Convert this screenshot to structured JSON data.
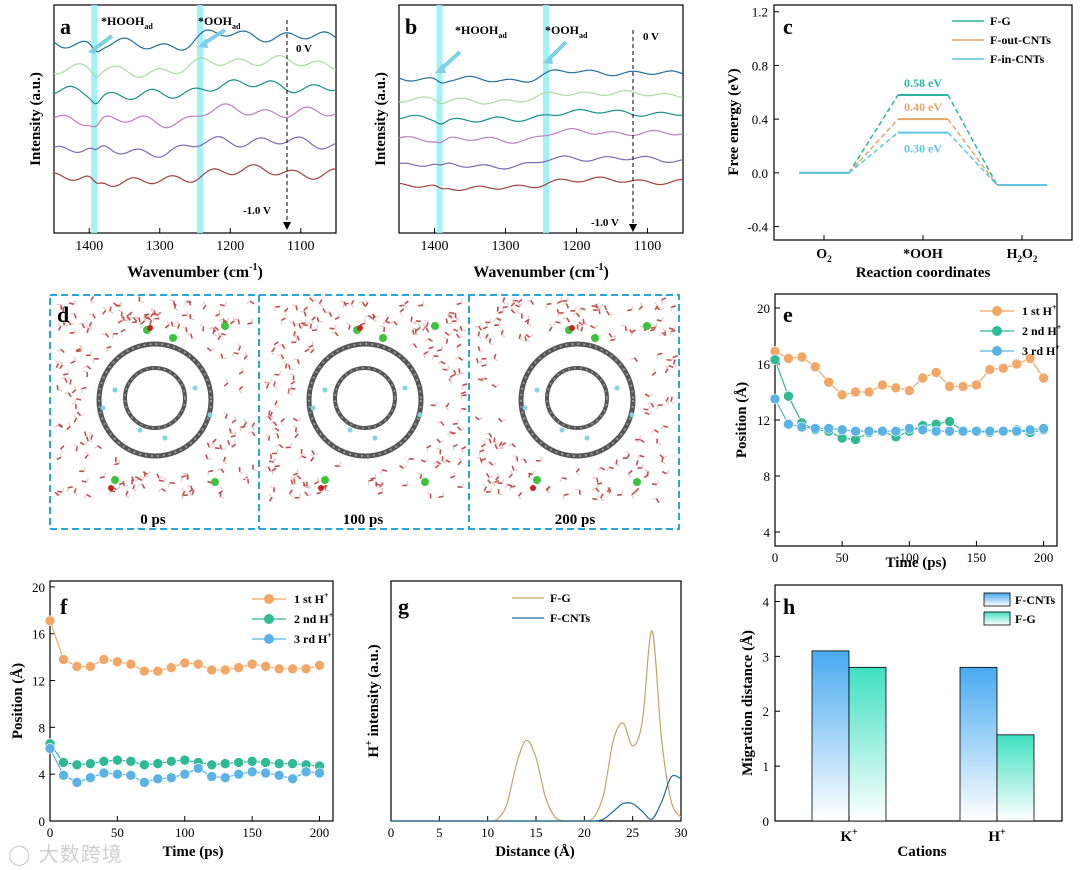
{
  "chart_data": [
    {
      "panel": "a",
      "type": "line",
      "xlabel": "Wavenumber (cm⁻¹)",
      "ylabel": "Intensity (a.u.)",
      "xlim": [
        1450,
        1050
      ],
      "x_ticks": [
        1400,
        1300,
        1200,
        1100
      ],
      "highlight_bands": [
        1393,
        1243
      ],
      "annotations": [
        {
          "main": "*HOOH",
          "sub": "ad"
        },
        {
          "main": "*OOH",
          "sub": "ad"
        },
        {
          "text": "0 V"
        },
        {
          "text": "-1.0 V"
        }
      ],
      "series": [
        {
          "color": "#1f6f9c"
        },
        {
          "color": "#a9dca0"
        },
        {
          "color": "#17908a"
        },
        {
          "color": "#c07cc2"
        },
        {
          "color": "#7b69b3"
        },
        {
          "color": "#a3413c"
        }
      ]
    },
    {
      "panel": "b",
      "type": "line",
      "xlabel": "Wavenumber (cm⁻¹)",
      "ylabel": "Intensity (a.u.)",
      "xlim": [
        1450,
        1050
      ],
      "x_ticks": [
        1400,
        1300,
        1200,
        1100
      ],
      "highlight_bands": [
        1393,
        1243
      ],
      "annotations": [
        {
          "main": "*HOOH",
          "sub": "ad"
        },
        {
          "main": "*OOH",
          "sub": "ad"
        },
        {
          "text": "0 V"
        },
        {
          "text": "-1.0 V"
        }
      ],
      "series": [
        {
          "color": "#1f6f9c"
        },
        {
          "color": "#a9dca0"
        },
        {
          "color": "#17908a"
        },
        {
          "color": "#c07cc2"
        },
        {
          "color": "#7b69b3"
        },
        {
          "color": "#a3413c"
        }
      ]
    },
    {
      "panel": "c",
      "type": "line",
      "xlabel": "Reaction coordinates",
      "ylabel": "Free energy (eV)",
      "ylim": [
        -0.5,
        1.25
      ],
      "y_ticks": [
        "-0.4",
        "0.0",
        "0.4",
        "0.8",
        "1.2"
      ],
      "categories": [
        "O2",
        "*OOH",
        "H2O2"
      ],
      "category_labels": [
        {
          "main": "O",
          "sub": "2"
        },
        {
          "main": "*OOH",
          "sub": ""
        },
        {
          "main": "H",
          "sub": "2",
          "tail": "O",
          "sub2": "2"
        }
      ],
      "series": [
        {
          "name": "F-G",
          "values": [
            0.0,
            0.58,
            -0.09
          ],
          "color": "#2bb59d",
          "label": "0.58 eV"
        },
        {
          "name": "F-out-CNTs",
          "values": [
            0.0,
            0.4,
            -0.09
          ],
          "color": "#e3a56a",
          "label": "0.40 eV"
        },
        {
          "name": "F-in-CNTs",
          "values": [
            0.0,
            0.3,
            -0.09
          ],
          "color": "#5ec5e3",
          "label": "0.30 eV"
        }
      ]
    },
    {
      "panel": "e",
      "type": "line",
      "xlabel": "Time (ps)",
      "ylabel": "Position (Å)",
      "xlim": [
        0,
        210
      ],
      "ylim": [
        3,
        21
      ],
      "x_ticks": [
        0,
        50,
        100,
        150,
        200
      ],
      "y_ticks": [
        4,
        8,
        12,
        16,
        20
      ],
      "x": [
        0,
        10,
        20,
        30,
        40,
        50,
        60,
        70,
        80,
        90,
        100,
        110,
        120,
        130,
        140,
        150,
        160,
        170,
        180,
        190,
        200
      ],
      "series": [
        {
          "name": "1 st H⁺",
          "color": "#f2a766",
          "values": [
            16.9,
            16.4,
            16.5,
            15.8,
            14.7,
            13.8,
            14.0,
            14.0,
            14.5,
            14.3,
            14.1,
            15.0,
            15.4,
            14.4,
            14.4,
            14.5,
            15.6,
            15.7,
            16.0,
            16.4,
            15.0
          ]
        },
        {
          "name": "2 nd H⁺",
          "color": "#2fb994",
          "values": [
            16.3,
            13.7,
            11.8,
            11.3,
            11.2,
            10.7,
            10.6,
            11.1,
            11.2,
            10.8,
            11.2,
            11.6,
            11.7,
            11.9,
            11.2,
            11.2,
            11.1,
            11.2,
            11.3,
            11.1,
            11.3
          ]
        },
        {
          "name": "3 rd H⁺",
          "color": "#5ab2e5",
          "values": [
            13.5,
            11.7,
            11.5,
            11.4,
            11.4,
            11.3,
            11.2,
            11.2,
            11.2,
            11.2,
            11.4,
            11.3,
            11.2,
            11.2,
            11.2,
            11.2,
            11.2,
            11.2,
            11.2,
            11.3,
            11.4
          ]
        }
      ]
    },
    {
      "panel": "f",
      "type": "line",
      "xlabel": "Time (ps)",
      "ylabel": "Position (Å)",
      "xlim": [
        0,
        210
      ],
      "ylim": [
        0,
        20.5
      ],
      "x_ticks": [
        0,
        50,
        100,
        150,
        200
      ],
      "y_ticks": [
        0,
        4,
        8,
        12,
        16,
        20
      ],
      "x": [
        0,
        10,
        20,
        30,
        40,
        50,
        60,
        70,
        80,
        90,
        100,
        110,
        120,
        130,
        140,
        150,
        160,
        170,
        180,
        190,
        200
      ],
      "series": [
        {
          "name": "1 st H⁺",
          "color": "#f2a766",
          "values": [
            17.1,
            13.8,
            13.2,
            13.2,
            13.8,
            13.6,
            13.4,
            12.8,
            12.8,
            13.1,
            13.5,
            13.4,
            12.9,
            12.9,
            13.1,
            13.4,
            13.2,
            13.0,
            13.0,
            13.0,
            13.3
          ]
        },
        {
          "name": "2 nd H⁺",
          "color": "#2fb994",
          "values": [
            6.6,
            5.0,
            4.8,
            4.9,
            5.1,
            5.2,
            5.1,
            4.8,
            4.9,
            5.1,
            5.2,
            5.0,
            4.8,
            4.9,
            5.0,
            5.1,
            5.0,
            4.9,
            4.9,
            4.8,
            4.7
          ]
        },
        {
          "name": "3 rd H⁺",
          "color": "#5ab2e5",
          "values": [
            6.2,
            3.9,
            3.3,
            3.7,
            4.1,
            4.0,
            3.9,
            3.3,
            3.6,
            3.7,
            4.0,
            4.5,
            3.8,
            3.7,
            4.0,
            4.2,
            4.1,
            3.9,
            3.6,
            4.2,
            4.1
          ]
        }
      ]
    },
    {
      "panel": "g",
      "type": "line",
      "xlabel": "Distance (Å)",
      "ylabel": "H⁺ intensity (a.u.)",
      "xlim": [
        0,
        30
      ],
      "x_ticks": [
        0,
        5,
        10,
        15,
        20,
        25,
        30
      ],
      "series": [
        {
          "name": "F-G",
          "color": "#c9a06a",
          "values": [
            0,
            0,
            0,
            0,
            0,
            0,
            0,
            0,
            0,
            0,
            0,
            0.01,
            0.09,
            0.3,
            0.42,
            0.33,
            0.12,
            0.02,
            0,
            0,
            0,
            0.02,
            0.14,
            0.42,
            0.51,
            0.39,
            0.52,
            0.99,
            0.42,
            0.1,
            0.02
          ]
        },
        {
          "name": "F-CNTs",
          "color": "#1f6f9c",
          "values": [
            0,
            0,
            0,
            0,
            0,
            0,
            0,
            0,
            0,
            0,
            0,
            0,
            0,
            0,
            0,
            0,
            0,
            0,
            0,
            0,
            0,
            0,
            0.01,
            0.05,
            0.09,
            0.09,
            0.05,
            0.01,
            0.1,
            0.23,
            0.22
          ]
        }
      ],
      "x": [
        0,
        1,
        2,
        3,
        4,
        5,
        6,
        7,
        8,
        9,
        10,
        11,
        12,
        13,
        14,
        15,
        16,
        17,
        18,
        19,
        20,
        21,
        22,
        23,
        24,
        25,
        26,
        27,
        28,
        29,
        30
      ]
    },
    {
      "panel": "h",
      "type": "bar",
      "xlabel": "Cations",
      "ylabel": "Migration distance (Å)",
      "ylim": [
        0,
        4.3
      ],
      "y_ticks": [
        0,
        1,
        2,
        3,
        4
      ],
      "categories": [
        "K⁺",
        "H⁺"
      ],
      "category_labels": [
        {
          "main": "K",
          "sup": "+"
        },
        {
          "main": "H",
          "sup": "+"
        }
      ],
      "series": [
        {
          "name": "F-CNTs",
          "values": [
            3.1,
            2.8
          ],
          "color": "#49aaf0"
        },
        {
          "name": "F-G",
          "values": [
            2.8,
            1.57
          ],
          "color": "#3fe0c0"
        }
      ]
    }
  ],
  "panel_letters": [
    "a",
    "b",
    "c",
    "d",
    "e",
    "f",
    "g",
    "h"
  ],
  "snapshots": {
    "time_labels": [
      "0 ps",
      "100 ps",
      "200 ps"
    ]
  },
  "watermark": "大数跨境"
}
